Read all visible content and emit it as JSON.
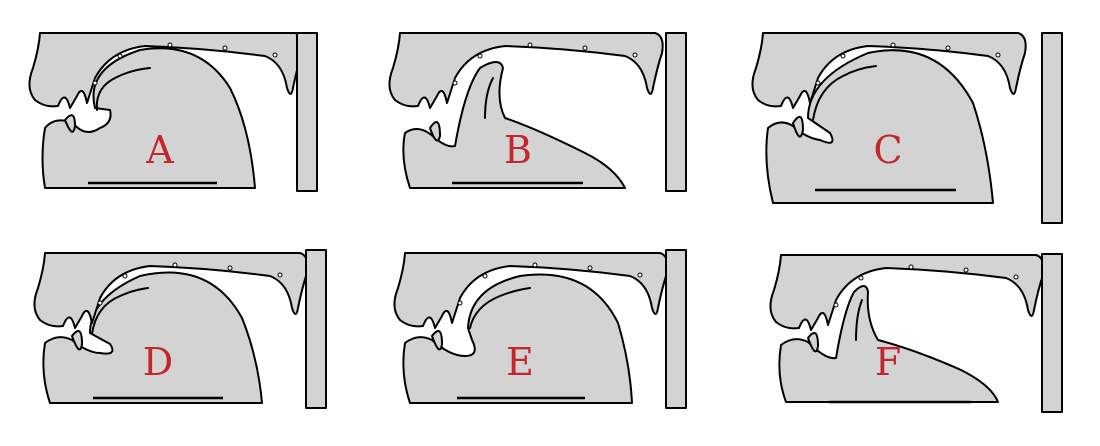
{
  "panels": [
    {
      "label": "A",
      "variant": "A"
    },
    {
      "label": "B",
      "variant": "B"
    },
    {
      "label": "C",
      "variant": "C"
    },
    {
      "label": "D",
      "variant": "D"
    },
    {
      "label": "E",
      "variant": "E"
    },
    {
      "label": "F",
      "variant": "F"
    }
  ],
  "colors": {
    "fill": "#d3d3d3",
    "stroke": "#000000",
    "label": "#c1272d"
  }
}
